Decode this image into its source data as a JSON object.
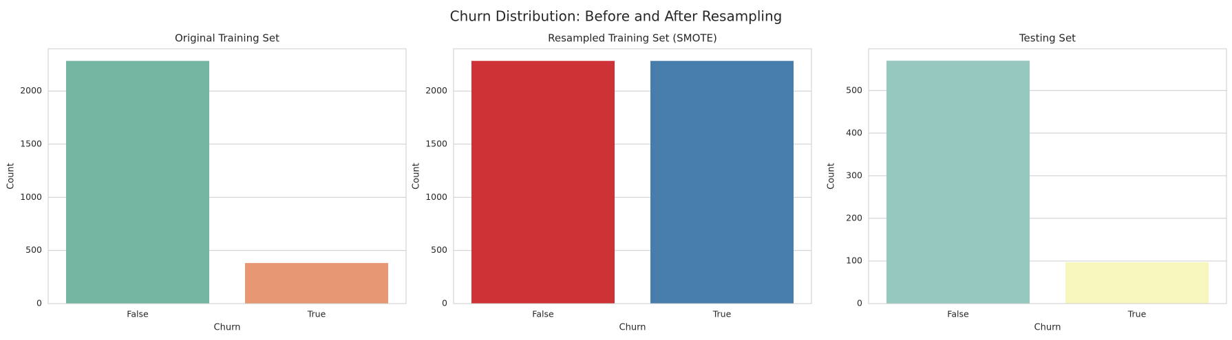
{
  "figure": {
    "title": "Churn Distribution: Before and After Resampling"
  },
  "chart_data": [
    {
      "type": "bar",
      "title": "Original Training Set",
      "xlabel": "Churn",
      "ylabel": "Count",
      "categories": [
        "False",
        "True"
      ],
      "values": [
        2284,
        382
      ],
      "ylim": [
        0,
        2398
      ],
      "yticks": [
        0,
        500,
        1000,
        1500,
        2000
      ],
      "colors": [
        "#74b6a1",
        "#e89774"
      ],
      "grid": "horizontal"
    },
    {
      "type": "bar",
      "title": "Resampled Training Set (SMOTE)",
      "xlabel": "Churn",
      "ylabel": "Count",
      "categories": [
        "False",
        "True"
      ],
      "values": [
        2284,
        2284
      ],
      "ylim": [
        0,
        2398
      ],
      "yticks": [
        0,
        500,
        1000,
        1500,
        2000
      ],
      "colors": [
        "#cd3336",
        "#477dab"
      ],
      "grid": "horizontal"
    },
    {
      "type": "bar",
      "title": "Testing Set",
      "xlabel": "Churn",
      "ylabel": "Count",
      "categories": [
        "False",
        "True"
      ],
      "values": [
        570,
        97
      ],
      "ylim": [
        0,
        598
      ],
      "yticks": [
        0,
        100,
        200,
        300,
        400,
        500
      ],
      "colors": [
        "#96c8bf",
        "#f7f6bc"
      ],
      "grid": "horizontal"
    }
  ]
}
